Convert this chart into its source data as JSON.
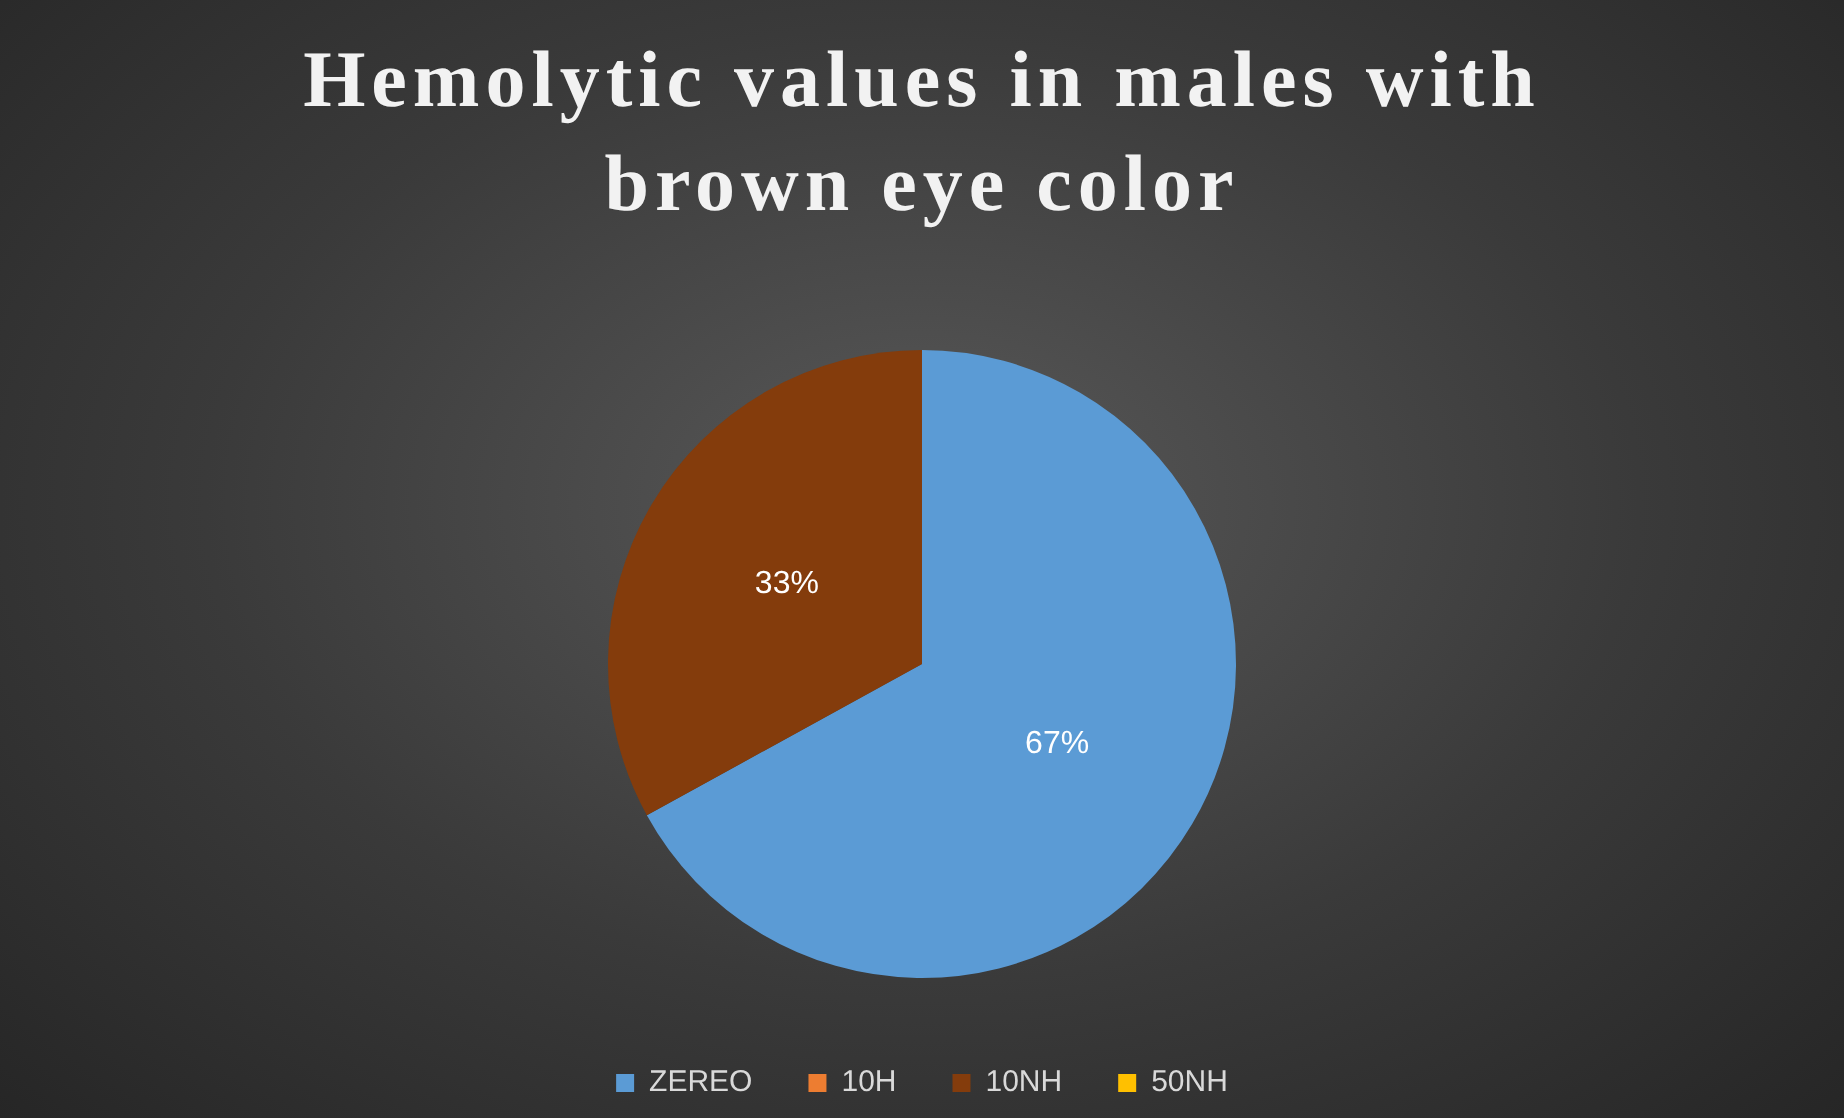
{
  "chart_data": {
    "type": "pie",
    "title": "Hemolytic values in males with brown eye color",
    "categories": [
      "ZEREO",
      "10H",
      "10NH",
      "50NH"
    ],
    "values": [
      67,
      0,
      33,
      0
    ],
    "colors": [
      "#5b9bd5",
      "#ed7d31",
      "#843c0c",
      "#ffc000"
    ],
    "value_labels": [
      "67%",
      null,
      "33%",
      null
    ],
    "legend": "bottom"
  }
}
